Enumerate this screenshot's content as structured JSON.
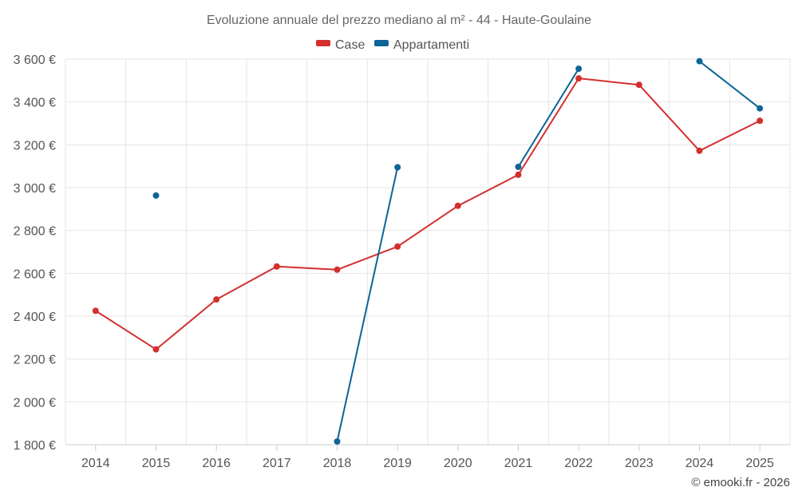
{
  "chart_data": {
    "type": "line",
    "title": "Evoluzione annuale del prezzo mediano al m² - 44 - Haute-Goulaine",
    "categories": [
      "2014",
      "2015",
      "2016",
      "2017",
      "2018",
      "2019",
      "2020",
      "2021",
      "2022",
      "2023",
      "2024",
      "2025"
    ],
    "ylim": [
      1800,
      3600
    ],
    "yticks": [
      1800,
      2000,
      2200,
      2400,
      2600,
      2800,
      3000,
      3200,
      3400,
      3600
    ],
    "ytick_labels": [
      "1 800 €",
      "2 000 €",
      "2 200 €",
      "2 400 €",
      "2 600 €",
      "2 800 €",
      "3 000 €",
      "3 200 €",
      "3 400 €",
      "3 600 €"
    ],
    "grid": true,
    "legend_position": "top-center",
    "series": [
      {
        "name": "Case",
        "color": "#d32f2f",
        "values": [
          2425,
          2245,
          2478,
          2632,
          2617,
          2725,
          2915,
          3060,
          3510,
          3480,
          3172,
          3312
        ]
      },
      {
        "name": "Appartamenti",
        "color": "#0d6496",
        "values": [
          null,
          2963,
          null,
          null,
          1815,
          3095,
          null,
          3097,
          3555,
          null,
          3590,
          3370
        ]
      }
    ]
  },
  "credit": "© emooki.fr - 2026"
}
